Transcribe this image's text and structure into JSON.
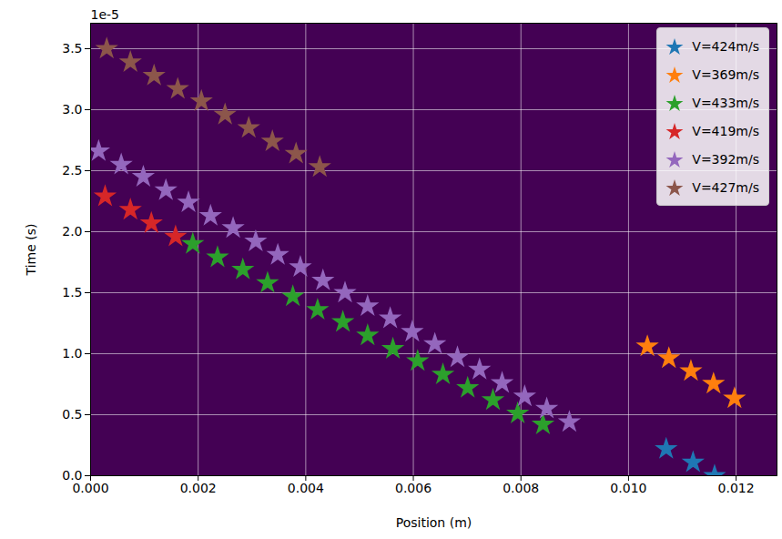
{
  "chart_data": {
    "type": "scatter",
    "x_label": "Position (m)",
    "y_label": "Time (s)",
    "annotation": "1e-5",
    "xlim": [
      0,
      0.01276
    ],
    "ylim": [
      0,
      3.709e-05
    ],
    "xticks": [
      {
        "value": 0,
        "label": "0.000"
      },
      {
        "value": 0.002,
        "label": "0.002"
      },
      {
        "value": 0.004,
        "label": "0.004"
      },
      {
        "value": 0.006,
        "label": "0.006"
      },
      {
        "value": 0.008,
        "label": "0.008"
      },
      {
        "value": 0.01,
        "label": "0.010"
      },
      {
        "value": 0.012,
        "label": "0.012"
      }
    ],
    "yticks": [
      {
        "value": 0,
        "label": "0.0"
      },
      {
        "value": 5e-06,
        "label": "0.5"
      },
      {
        "value": 1e-05,
        "label": "1.0"
      },
      {
        "value": 1.5e-05,
        "label": "1.5"
      },
      {
        "value": 2e-05,
        "label": "2.0"
      },
      {
        "value": 2.5e-05,
        "label": "2.5"
      },
      {
        "value": 3e-05,
        "label": "3.0"
      },
      {
        "value": 3.5e-05,
        "label": "3.5"
      }
    ],
    "grid": true,
    "legend": "upper right",
    "marker": "star",
    "series": [
      {
        "name": "V=424m/s",
        "color": "#1f77b4",
        "x": [
          0.0107,
          0.0112,
          0.0116
        ],
        "values": [
          2.2e-06,
          1.1e-06,
          0
        ]
      },
      {
        "name": "V=369m/s",
        "color": "#ff7f0e",
        "x": [
          0.01035,
          0.01075,
          0.01116,
          0.01158,
          0.01197
        ],
        "values": [
          1.06e-05,
          9.63e-06,
          8.58e-06,
          7.54e-06,
          6.34e-06
        ]
      },
      {
        "name": "V=433m/s",
        "color": "#2ca02c",
        "x": [
          0.0019,
          0.00236,
          0.00283,
          0.00329,
          0.00376,
          0.00422,
          0.00469,
          0.00515,
          0.00562,
          0.00608,
          0.00655,
          0.00701,
          0.00748,
          0.00794,
          0.00841
        ],
        "values": [
          1.9e-05,
          1.79e-05,
          1.69e-05,
          1.58e-05,
          1.47e-05,
          1.36e-05,
          1.26e-05,
          1.15e-05,
          1.04e-05,
          9.4e-06,
          8.3e-06,
          7.2e-06,
          6.2e-06,
          5.1e-06,
          4.2e-06
        ]
      },
      {
        "name": "V=419m/s",
        "color": "#d62728",
        "x": [
          0.00027,
          0.00074,
          0.00113,
          0.00158
        ],
        "values": [
          2.29e-05,
          2.18e-05,
          2.07e-05,
          1.96e-05
        ]
      },
      {
        "name": "V=392m/s",
        "color": "#9467bd",
        "x": [
          0.00015,
          0.00057,
          0.00098,
          0.0014,
          0.00182,
          0.00223,
          0.00265,
          0.00307,
          0.00348,
          0.0039,
          0.00432,
          0.00473,
          0.00515,
          0.00557,
          0.00598,
          0.0064,
          0.00682,
          0.00723,
          0.00765,
          0.00807,
          0.00848,
          0.0089
        ],
        "values": [
          2.66e-05,
          2.55e-05,
          2.45e-05,
          2.34e-05,
          2.24e-05,
          2.13e-05,
          2.03e-05,
          1.92e-05,
          1.81e-05,
          1.71e-05,
          1.6e-05,
          1.5e-05,
          1.39e-05,
          1.29e-05,
          1.18e-05,
          1.08e-05,
          9.7e-06,
          8.7e-06,
          7.6e-06,
          6.5e-06,
          5.5e-06,
          4.4e-06
        ]
      },
      {
        "name": "V=427m/s",
        "color": "#8c564b",
        "x": [
          0.0003,
          0.00074,
          0.00118,
          0.00162,
          0.00206,
          0.0025,
          0.00294,
          0.00338,
          0.00382,
          0.00426
        ],
        "values": [
          3.5e-05,
          3.39e-05,
          3.28e-05,
          3.17e-05,
          3.07e-05,
          2.96e-05,
          2.85e-05,
          2.74e-05,
          2.64e-05,
          2.53e-05
        ]
      }
    ]
  }
}
